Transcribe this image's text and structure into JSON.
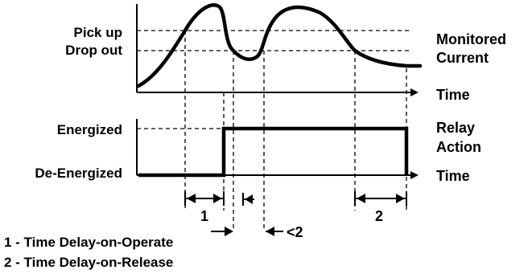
{
  "labels": {
    "pick_up": "Pick up",
    "drop_out": "Drop out",
    "monitored_line1": "Monitored",
    "monitored_line2": "Current",
    "time_top": "Time",
    "energized": "Energized",
    "de_energized": "De-Energized",
    "relay_line1": "Relay",
    "relay_line2": "Action",
    "time_bottom": "Time"
  },
  "markers": {
    "delay1_a": "1",
    "delay_lt2": "<2",
    "delay2": "2"
  },
  "legend": {
    "item1": "1 - Time Delay-on-Operate",
    "item2": "2 - Time Delay-on-Release"
  }
}
